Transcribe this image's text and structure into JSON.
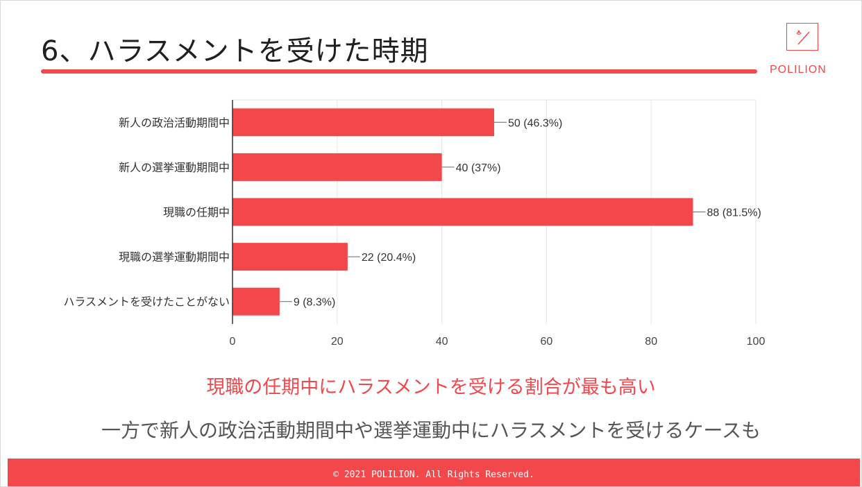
{
  "slide": {
    "title": "6、ハラスメントを受けた時期",
    "brand": "POLILION",
    "headline": "現職の任期中にハラスメントを受ける割合が最も高い",
    "subline": "一方で新人の政治活動期間中や選挙運動中にハラスメントを受けるケースも",
    "footer": "© 2021 POLILION. All Rights Reserved."
  },
  "colors": {
    "accent": "#f2474b",
    "bar": "#f2474b",
    "grid": "#e6e6e6",
    "axis": "#333333"
  },
  "chart_data": {
    "type": "bar",
    "orientation": "horizontal",
    "categories": [
      "新人の政治活動期間中",
      "新人の選挙運動期間中",
      "現職の任期中",
      "現職の選挙運動期間中",
      "ハラスメントを受けたことがない"
    ],
    "values": [
      50,
      40,
      88,
      22,
      9
    ],
    "data_labels": [
      "50 (46.3%)",
      "40 (37%)",
      "88 (81.5%)",
      "22 (20.4%)",
      "9 (8.3%)"
    ],
    "xlim": [
      0,
      100
    ],
    "xticks": [
      0,
      20,
      40,
      60,
      80,
      100
    ],
    "grid": true
  }
}
